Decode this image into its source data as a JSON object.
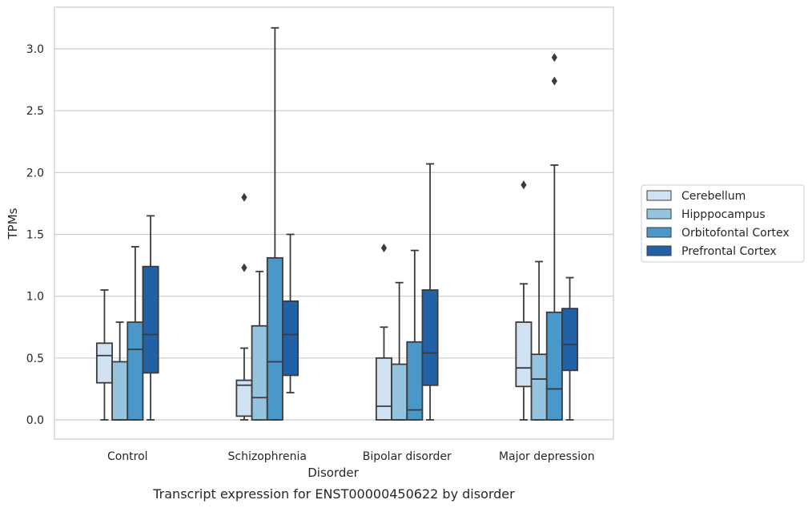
{
  "chart_data": {
    "type": "box",
    "title": "Transcript expression for ENST00000450622 by disorder",
    "xlabel": "Disorder",
    "ylabel": "TPMs",
    "ylim": [
      -0.15,
      3.35
    ],
    "yticks": [
      "0.0",
      "0.5",
      "1.0",
      "1.5",
      "2.0",
      "2.5",
      "3.0"
    ],
    "categories": [
      "Control",
      "Schizophrenia",
      "Bipolar disorder",
      "Major depression"
    ],
    "grid": "horizontal",
    "legend_position": "right",
    "series": [
      {
        "name": "Cerebellum",
        "color": "#d0e1f2",
        "boxes": [
          {
            "whisker_low": 0.0,
            "q1": 0.3,
            "median": 0.52,
            "q3": 0.62,
            "whisker_high": 1.05,
            "outliers": []
          },
          {
            "whisker_low": 0.0,
            "q1": 0.03,
            "median": 0.28,
            "q3": 0.32,
            "whisker_high": 0.58,
            "outliers": [
              1.8,
              1.23
            ]
          },
          {
            "whisker_low": 0.0,
            "q1": 0.0,
            "median": 0.11,
            "q3": 0.5,
            "whisker_high": 0.75,
            "outliers": [
              1.39
            ]
          },
          {
            "whisker_low": 0.0,
            "q1": 0.27,
            "median": 0.42,
            "q3": 0.79,
            "whisker_high": 1.1,
            "outliers": [
              1.9
            ]
          }
        ]
      },
      {
        "name": "Hipppocampus",
        "color": "#94c4df",
        "boxes": [
          {
            "whisker_low": 0.0,
            "q1": 0.0,
            "median": 0.0,
            "q3": 0.47,
            "whisker_high": 0.79,
            "outliers": []
          },
          {
            "whisker_low": 0.0,
            "q1": 0.0,
            "median": 0.18,
            "q3": 0.76,
            "whisker_high": 1.2,
            "outliers": []
          },
          {
            "whisker_low": 0.0,
            "q1": 0.0,
            "median": 0.0,
            "q3": 0.45,
            "whisker_high": 1.11,
            "outliers": []
          },
          {
            "whisker_low": 0.0,
            "q1": 0.0,
            "median": 0.33,
            "q3": 0.53,
            "whisker_high": 1.28,
            "outliers": []
          }
        ]
      },
      {
        "name": "Orbitofontal Cortex",
        "color": "#4a98c9",
        "boxes": [
          {
            "whisker_low": 0.0,
            "q1": 0.0,
            "median": 0.57,
            "q3": 0.79,
            "whisker_high": 1.4,
            "outliers": []
          },
          {
            "whisker_low": 0.0,
            "q1": 0.0,
            "median": 0.47,
            "q3": 1.31,
            "whisker_high": 3.17,
            "outliers": []
          },
          {
            "whisker_low": 0.0,
            "q1": 0.0,
            "median": 0.08,
            "q3": 0.63,
            "whisker_high": 1.37,
            "outliers": []
          },
          {
            "whisker_low": 0.0,
            "q1": 0.0,
            "median": 0.25,
            "q3": 0.87,
            "whisker_high": 2.06,
            "outliers": [
              2.74,
              2.93
            ]
          }
        ]
      },
      {
        "name": "Prefrontal Cortex",
        "color": "#2261a5",
        "boxes": [
          {
            "whisker_low": 0.0,
            "q1": 0.38,
            "median": 0.69,
            "q3": 1.24,
            "whisker_high": 1.65,
            "outliers": []
          },
          {
            "whisker_low": 0.22,
            "q1": 0.36,
            "median": 0.69,
            "q3": 0.96,
            "whisker_high": 1.5,
            "outliers": []
          },
          {
            "whisker_low": 0.0,
            "q1": 0.28,
            "median": 0.54,
            "q3": 1.05,
            "whisker_high": 2.07,
            "outliers": []
          },
          {
            "whisker_low": 0.0,
            "q1": 0.4,
            "median": 0.61,
            "q3": 0.9,
            "whisker_high": 1.15,
            "outliers": []
          }
        ]
      }
    ],
    "line_color": "#3b3b3b",
    "grid_color": "#cccccc",
    "frame_color": "#cccccc"
  }
}
